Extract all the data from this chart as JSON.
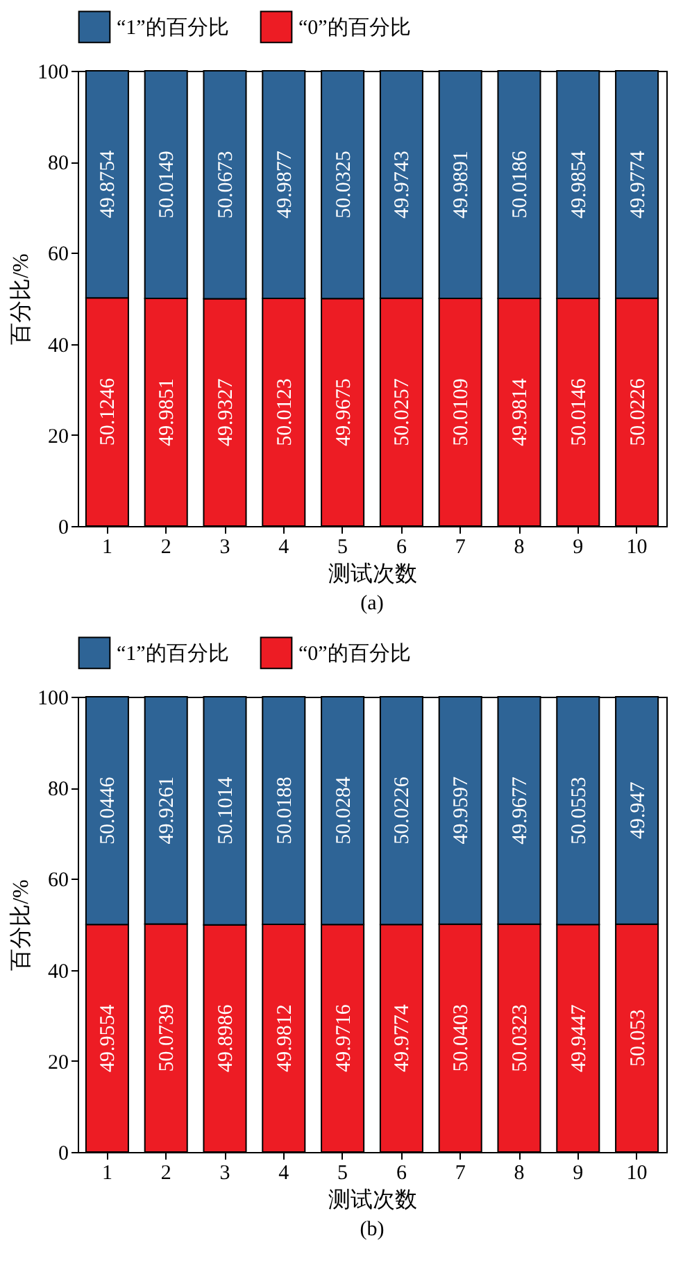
{
  "chart_data": [
    {
      "type": "bar",
      "stacked": true,
      "categories": [
        "1",
        "2",
        "3",
        "4",
        "5",
        "6",
        "7",
        "8",
        "9",
        "10"
      ],
      "xlabel": "测试次数",
      "ylabel": "百分比/%",
      "annotations": [
        "(a)"
      ],
      "ylim": [
        0,
        100
      ],
      "yticks": [
        0,
        20,
        40,
        60,
        80,
        100
      ],
      "grid": false,
      "legend": "top",
      "data_labels": true,
      "series": [
        {
          "name": "“0”的百分比",
          "color": "#ed1c24",
          "values": [
            50.1246,
            49.9851,
            49.9327,
            50.0123,
            49.9675,
            50.0257,
            50.0109,
            49.9814,
            50.0146,
            50.0226
          ]
        },
        {
          "name": "“1”的百分比",
          "color": "#2e6496",
          "values": [
            49.8754,
            50.0149,
            50.0673,
            49.9877,
            50.0325,
            49.9743,
            49.9891,
            50.0186,
            49.9854,
            49.9774
          ]
        }
      ]
    },
    {
      "type": "bar",
      "stacked": true,
      "categories": [
        "1",
        "2",
        "3",
        "4",
        "5",
        "6",
        "7",
        "8",
        "9",
        "10"
      ],
      "xlabel": "测试次数",
      "ylabel": "百分比/%",
      "annotations": [
        "(b)"
      ],
      "ylim": [
        0,
        100
      ],
      "yticks": [
        0,
        20,
        40,
        60,
        80,
        100
      ],
      "grid": false,
      "legend": "top",
      "data_labels": true,
      "series": [
        {
          "name": "“0”的百分比",
          "color": "#ed1c24",
          "values": [
            49.9554,
            50.0739,
            49.8986,
            49.9812,
            49.9716,
            49.9774,
            50.0403,
            50.0323,
            49.9447,
            50.053
          ]
        },
        {
          "name": "“1”的百分比",
          "color": "#2e6496",
          "values": [
            50.0446,
            49.9261,
            50.1014,
            50.0188,
            50.0284,
            50.0226,
            49.9597,
            49.9677,
            50.0553,
            49.947
          ]
        }
      ]
    }
  ]
}
